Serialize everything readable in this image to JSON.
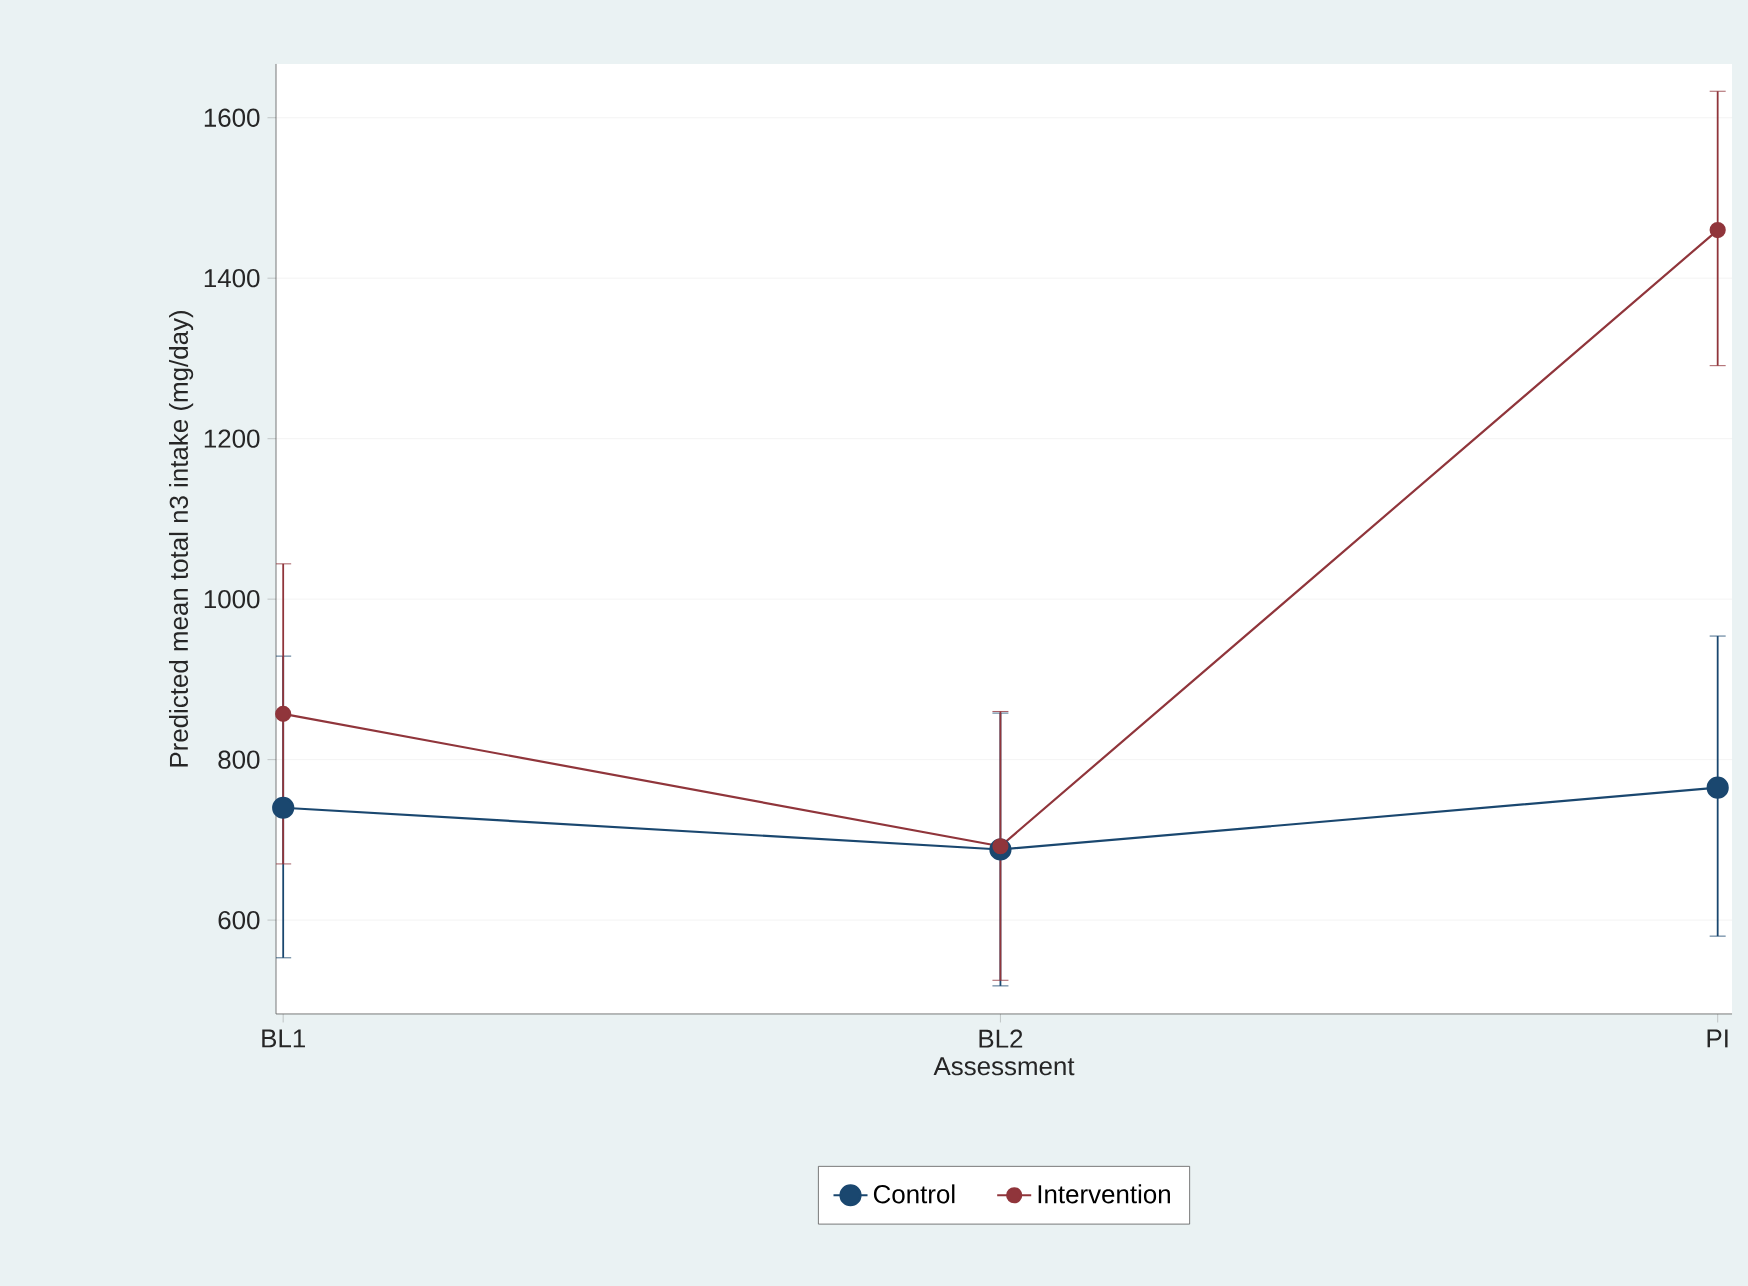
{
  "chart_data": {
    "type": "line",
    "xlabel": "Assessment",
    "ylabel": "Predicted mean total n3 intake (mg/day)",
    "categories": [
      "BL1",
      "BL2",
      "PI"
    ],
    "series": [
      {
        "name": "Control",
        "color": "#1a476f",
        "values": [
          740,
          688,
          765
        ],
        "errors": [
          [
            553,
            929
          ],
          [
            518,
            858
          ],
          [
            580,
            954
          ]
        ]
      },
      {
        "name": "Intervention",
        "color": "#90353b",
        "values": [
          857,
          692,
          1460
        ],
        "errors": [
          [
            670,
            1044
          ],
          [
            525,
            860
          ],
          [
            1291,
            1633
          ]
        ]
      }
    ],
    "ylim": [
      483,
      1667
    ],
    "yticks": [
      600,
      800,
      1000,
      1200,
      1400,
      1600
    ],
    "grid": "y",
    "legend": "bottom",
    "marker": "circle"
  }
}
